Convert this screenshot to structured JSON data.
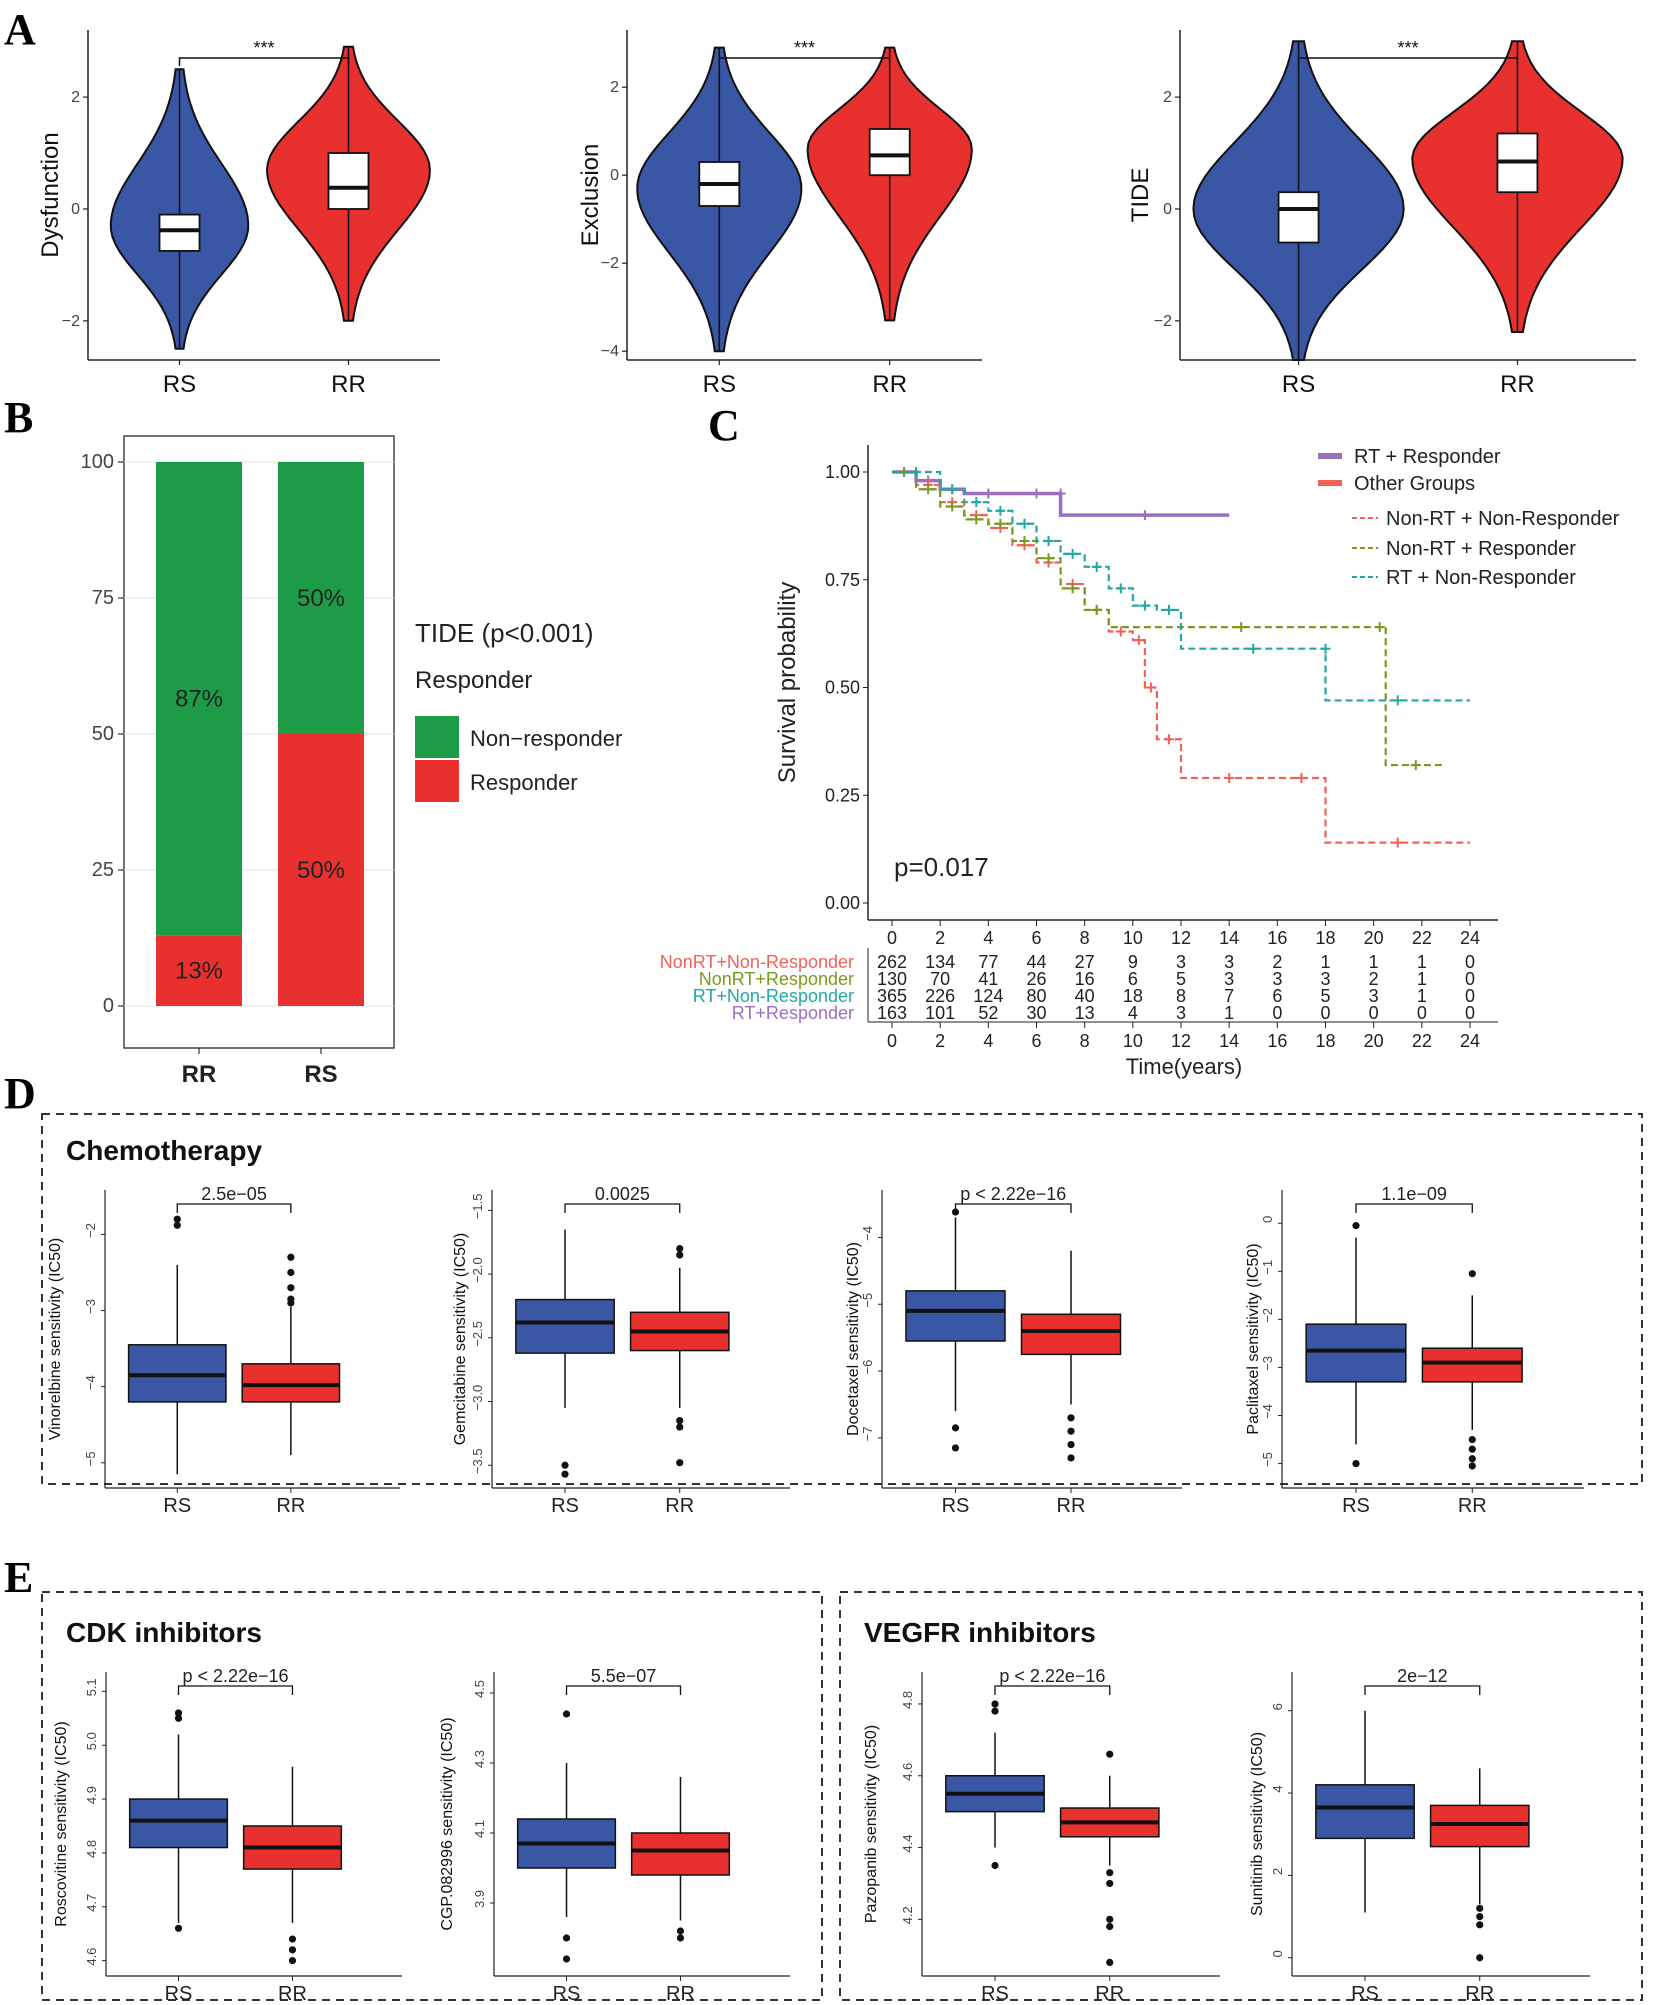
{
  "colors": {
    "rs": "#3A57A5",
    "rr": "#E8312E",
    "green": "#1E9B46",
    "red": "#E8312E",
    "purple": "#9B6FC0",
    "olive": "#7A9A1E",
    "teal": "#22A7A5",
    "salmon": "#F2605B"
  },
  "panels": {
    "A": "A",
    "B": "B",
    "C": "C",
    "D": "D",
    "E": "E"
  },
  "chart_data": [
    {
      "panel": "A",
      "type": "violin",
      "ylabel": "Dysfunction",
      "categories": [
        "RS",
        "RR"
      ],
      "significance": "***",
      "ylim": [
        -2.7,
        3.2
      ],
      "yticks": [
        -2,
        0,
        2
      ],
      "groups": [
        {
          "name": "RS",
          "min": -2.5,
          "q1": -0.75,
          "median": -0.38,
          "q3": -0.1,
          "max": 2.5,
          "peak": -0.3,
          "width": 0.8
        },
        {
          "name": "RR",
          "min": -2.0,
          "q1": 0.0,
          "median": 0.38,
          "q3": 1.0,
          "max": 2.9,
          "peak": 0.7,
          "width": 0.95
        }
      ]
    },
    {
      "panel": "A",
      "type": "violin",
      "ylabel": "Exclusion",
      "categories": [
        "RS",
        "RR"
      ],
      "significance": "***",
      "ylim": [
        -4.2,
        3.3
      ],
      "yticks": [
        -4,
        -2,
        0,
        2
      ],
      "groups": [
        {
          "name": "RS",
          "min": -4.0,
          "q1": -0.7,
          "median": -0.2,
          "q3": 0.3,
          "max": 2.9,
          "peak": -0.3,
          "width": 0.95
        },
        {
          "name": "RR",
          "min": -3.3,
          "q1": 0.0,
          "median": 0.45,
          "q3": 1.05,
          "max": 2.9,
          "peak": 0.6,
          "width": 0.95
        }
      ]
    },
    {
      "panel": "A",
      "type": "violin",
      "ylabel": "TIDE",
      "categories": [
        "RS",
        "RR"
      ],
      "significance": "***",
      "ylim": [
        -2.7,
        3.2
      ],
      "yticks": [
        -2,
        0,
        2
      ],
      "groups": [
        {
          "name": "RS",
          "min": -2.7,
          "q1": -0.6,
          "median": 0.0,
          "q3": 0.3,
          "max": 3.0,
          "peak": 0.0,
          "width": 0.95
        },
        {
          "name": "RR",
          "min": -2.2,
          "q1": 0.3,
          "median": 0.85,
          "q3": 1.35,
          "max": 3.0,
          "peak": 0.9,
          "width": 0.95
        }
      ]
    },
    {
      "panel": "B",
      "type": "stacked-bar",
      "categories": [
        "RR",
        "RS"
      ],
      "ylim": [
        0,
        100
      ],
      "yticks": [
        0,
        25,
        50,
        75,
        100
      ],
      "series": [
        {
          "name": "Responder",
          "values": [
            13,
            50
          ],
          "labels": [
            "13%",
            "50%"
          ]
        },
        {
          "name": "Non−responder",
          "values": [
            87,
            50
          ],
          "labels": [
            "87%",
            "50%"
          ]
        }
      ],
      "legend_title": "TIDE (p<0.001)",
      "legend_subtitle": "Responder",
      "legend_items": [
        "Non−responder",
        "Responder"
      ]
    },
    {
      "panel": "C",
      "type": "line",
      "ylabel": "Survival probability",
      "xlabel": "Time(years)",
      "xlim": [
        0,
        24
      ],
      "ylim": [
        0,
        1
      ],
      "xticks": [
        0,
        2,
        4,
        6,
        8,
        10,
        12,
        14,
        16,
        18,
        20,
        22,
        24
      ],
      "yticks": [
        "0.00",
        "0.25",
        "0.50",
        "0.75",
        "1.00"
      ],
      "pvalue": "p=0.017",
      "legend": [
        "RT + Responder",
        "Other Groups",
        "Non-RT + Non-Responder",
        "Non-RT + Responder",
        "RT + Non-Responder"
      ],
      "series": [
        {
          "name": "RT + Responder",
          "x": [
            0,
            1,
            2,
            3,
            5,
            7,
            7,
            14
          ],
          "y": [
            1.0,
            0.98,
            0.96,
            0.95,
            0.95,
            0.95,
            0.9,
            0.9
          ]
        },
        {
          "name": "Non-RT + Non-Responder",
          "x": [
            0,
            1,
            2,
            3,
            4,
            5,
            6,
            7,
            8,
            9,
            10,
            10.5,
            11,
            12,
            16,
            18,
            24
          ],
          "y": [
            1.0,
            0.97,
            0.93,
            0.9,
            0.87,
            0.83,
            0.79,
            0.74,
            0.68,
            0.63,
            0.61,
            0.5,
            0.38,
            0.29,
            0.29,
            0.14,
            0.14
          ]
        },
        {
          "name": "Non-RT + Responder",
          "x": [
            0,
            1,
            2,
            3,
            4,
            5,
            6,
            7,
            8,
            9,
            20,
            20.5,
            23
          ],
          "y": [
            1.0,
            0.96,
            0.92,
            0.89,
            0.88,
            0.84,
            0.8,
            0.73,
            0.68,
            0.64,
            0.64,
            0.32,
            0.32
          ]
        },
        {
          "name": "RT + Non-Responder",
          "x": [
            0,
            2,
            3,
            4,
            5,
            6,
            7,
            8,
            9,
            10,
            11,
            12,
            18,
            18,
            24
          ],
          "y": [
            1.0,
            0.96,
            0.93,
            0.91,
            0.88,
            0.84,
            0.81,
            0.78,
            0.73,
            0.69,
            0.68,
            0.59,
            0.59,
            0.47,
            0.47
          ]
        }
      ],
      "risk_table": {
        "row_labels": [
          "NonRT+Non-Responder",
          "NonRT+Responder",
          "RT+Non-Responder",
          "RT+Responder"
        ],
        "rows": [
          [
            "262",
            "134",
            "77",
            "44",
            "27",
            "9",
            "3",
            "3",
            "2",
            "1",
            "1",
            "1",
            "0"
          ],
          [
            "130",
            "70",
            "41",
            "26",
            "16",
            "6",
            "5",
            "3",
            "3",
            "3",
            "2",
            "1",
            "0"
          ],
          [
            "365",
            "226",
            "124",
            "80",
            "40",
            "18",
            "8",
            "7",
            "6",
            "5",
            "3",
            "1",
            "0"
          ],
          [
            "163",
            "101",
            "52",
            "30",
            "13",
            "4",
            "3",
            "1",
            "0",
            "0",
            "0",
            "0",
            "0"
          ]
        ]
      }
    },
    {
      "panel": "D",
      "type": "boxplot",
      "ylabel": "Vinorelbine sensitivity (IC50)",
      "significance": "2.5e−05",
      "categories": [
        "RS",
        "RR"
      ],
      "ylim": [
        -5.2,
        -1.6
      ],
      "yticks": [
        "-5",
        "-4",
        "-3",
        "-2"
      ],
      "groups": [
        {
          "name": "RS",
          "min": -5.15,
          "q1": -4.2,
          "median": -3.85,
          "q3": -3.45,
          "max": -2.4,
          "outliers": [
            -1.8,
            -1.88
          ]
        },
        {
          "name": "RR",
          "min": -4.9,
          "q1": -4.2,
          "median": -3.98,
          "q3": -3.7,
          "max": -2.95,
          "outliers": [
            -2.3,
            -2.5,
            -2.7,
            -2.85,
            -2.9
          ]
        }
      ]
    },
    {
      "panel": "D",
      "type": "boxplot",
      "ylabel": "Gemcitabine sensitivity (IC50)",
      "significance": "0.0025",
      "categories": [
        "RS",
        "RR"
      ],
      "ylim": [
        -3.6,
        -1.45
      ],
      "yticks": [
        "-3.5",
        "-3.0",
        "-2.5",
        "-2.0",
        "-1.5"
      ],
      "groups": [
        {
          "name": "RS",
          "min": -3.05,
          "q1": -2.62,
          "median": -2.38,
          "q3": -2.2,
          "max": -1.65,
          "outliers": [
            -3.5,
            -3.57
          ]
        },
        {
          "name": "RR",
          "min": -3.05,
          "q1": -2.6,
          "median": -2.45,
          "q3": -2.3,
          "max": -1.95,
          "outliers": [
            -1.8,
            -1.85,
            -3.15,
            -3.2,
            -3.48
          ]
        }
      ]
    },
    {
      "panel": "D",
      "type": "boxplot",
      "ylabel": "Docetaxel sensitivity (IC50)",
      "significance": "p < 2.22e−16",
      "categories": [
        "RS",
        "RR"
      ],
      "ylim": [
        -7.6,
        -3.5
      ],
      "yticks": [
        "-7",
        "-6",
        "-5",
        "-4"
      ],
      "groups": [
        {
          "name": "RS",
          "min": -6.6,
          "q1": -5.55,
          "median": -5.1,
          "q3": -4.8,
          "max": -3.7,
          "outliers": [
            -3.62,
            -6.85,
            -7.15
          ]
        },
        {
          "name": "RR",
          "min": -6.5,
          "q1": -5.75,
          "median": -5.4,
          "q3": -5.15,
          "max": -4.2,
          "outliers": [
            -6.7,
            -6.9,
            -7.1,
            -7.3
          ]
        }
      ]
    },
    {
      "panel": "D",
      "type": "boxplot",
      "ylabel": "Paclitaxel sensitivity (IC50)",
      "significance": "1.1e−09",
      "categories": [
        "RS",
        "RR"
      ],
      "ylim": [
        -5.3,
        0.4
      ],
      "yticks": [
        "-5",
        "-4",
        "-3",
        "-2",
        "-1",
        "0"
      ],
      "groups": [
        {
          "name": "RS",
          "min": -4.6,
          "q1": -3.3,
          "median": -2.65,
          "q3": -2.1,
          "max": -0.3,
          "outliers": [
            -0.05,
            -5.0
          ]
        },
        {
          "name": "RR",
          "min": -4.3,
          "q1": -3.3,
          "median": -2.9,
          "q3": -2.6,
          "max": -1.5,
          "outliers": [
            -1.05,
            -4.5,
            -4.7,
            -4.9,
            -5.05
          ]
        }
      ]
    },
    {
      "panel": "E",
      "type": "boxplot",
      "ylabel": "Roscovitine sensitivity (IC50)",
      "significance": "p < 2.22e−16",
      "categories": [
        "RS",
        "RR"
      ],
      "ylim": [
        4.59,
        5.11
      ],
      "yticks": [
        "4.6",
        "4.7",
        "4.8",
        "4.9",
        "5.0",
        "5.1"
      ],
      "groups": [
        {
          "name": "RS",
          "min": 4.67,
          "q1": 4.81,
          "median": 4.86,
          "q3": 4.9,
          "max": 5.02,
          "outliers": [
            5.05,
            5.06,
            4.66
          ]
        },
        {
          "name": "RR",
          "min": 4.67,
          "q1": 4.77,
          "median": 4.81,
          "q3": 4.85,
          "max": 4.96,
          "outliers": [
            4.6,
            4.62,
            4.64
          ]
        }
      ]
    },
    {
      "panel": "E",
      "type": "boxplot",
      "ylabel": "CGP.082996 sensitivity (IC50)",
      "significance": "5.5e−07",
      "categories": [
        "RS",
        "RR"
      ],
      "ylim": [
        3.72,
        4.52
      ],
      "yticks": [
        "3.9",
        "4.1",
        "4.3",
        "4.5"
      ],
      "groups": [
        {
          "name": "RS",
          "min": 3.86,
          "q1": 4.0,
          "median": 4.07,
          "q3": 4.14,
          "max": 4.3,
          "outliers": [
            4.44,
            3.8,
            3.74
          ]
        },
        {
          "name": "RR",
          "min": 3.85,
          "q1": 3.98,
          "median": 4.05,
          "q3": 4.1,
          "max": 4.26,
          "outliers": [
            3.82,
            3.8
          ]
        }
      ]
    },
    {
      "panel": "E",
      "type": "boxplot",
      "ylabel": "Pazopanib sensitivity (IC50)",
      "significance": "p < 2.22e−16",
      "categories": [
        "RS",
        "RR"
      ],
      "ylim": [
        4.07,
        4.85
      ],
      "yticks": [
        "4.2",
        "4.4",
        "4.6",
        "4.8"
      ],
      "groups": [
        {
          "name": "RS",
          "min": 4.4,
          "q1": 4.5,
          "median": 4.55,
          "q3": 4.6,
          "max": 4.72,
          "outliers": [
            4.78,
            4.8,
            4.35
          ]
        },
        {
          "name": "RR",
          "min": 4.35,
          "q1": 4.43,
          "median": 4.47,
          "q3": 4.51,
          "max": 4.6,
          "outliers": [
            4.66,
            4.33,
            4.3,
            4.2,
            4.18,
            4.08
          ]
        }
      ]
    },
    {
      "panel": "E",
      "type": "boxplot",
      "ylabel": "Sunitinib sensitivity (IC50)",
      "significance": "2e−12",
      "categories": [
        "RS",
        "RR"
      ],
      "ylim": [
        -0.2,
        6.6
      ],
      "yticks": [
        "0",
        "2",
        "4",
        "6"
      ],
      "groups": [
        {
          "name": "RS",
          "min": 1.1,
          "q1": 2.9,
          "median": 3.65,
          "q3": 4.2,
          "max": 6.0,
          "outliers": []
        },
        {
          "name": "RR",
          "min": 1.3,
          "q1": 2.7,
          "median": 3.25,
          "q3": 3.7,
          "max": 4.6,
          "outliers": [
            1.2,
            1.0,
            0.8,
            0.0
          ]
        }
      ]
    }
  ],
  "group_titles": {
    "chemo": "Chemotherapy",
    "cdk": "CDK inhibitors",
    "vegfr": "VEGFR inhibitors"
  }
}
